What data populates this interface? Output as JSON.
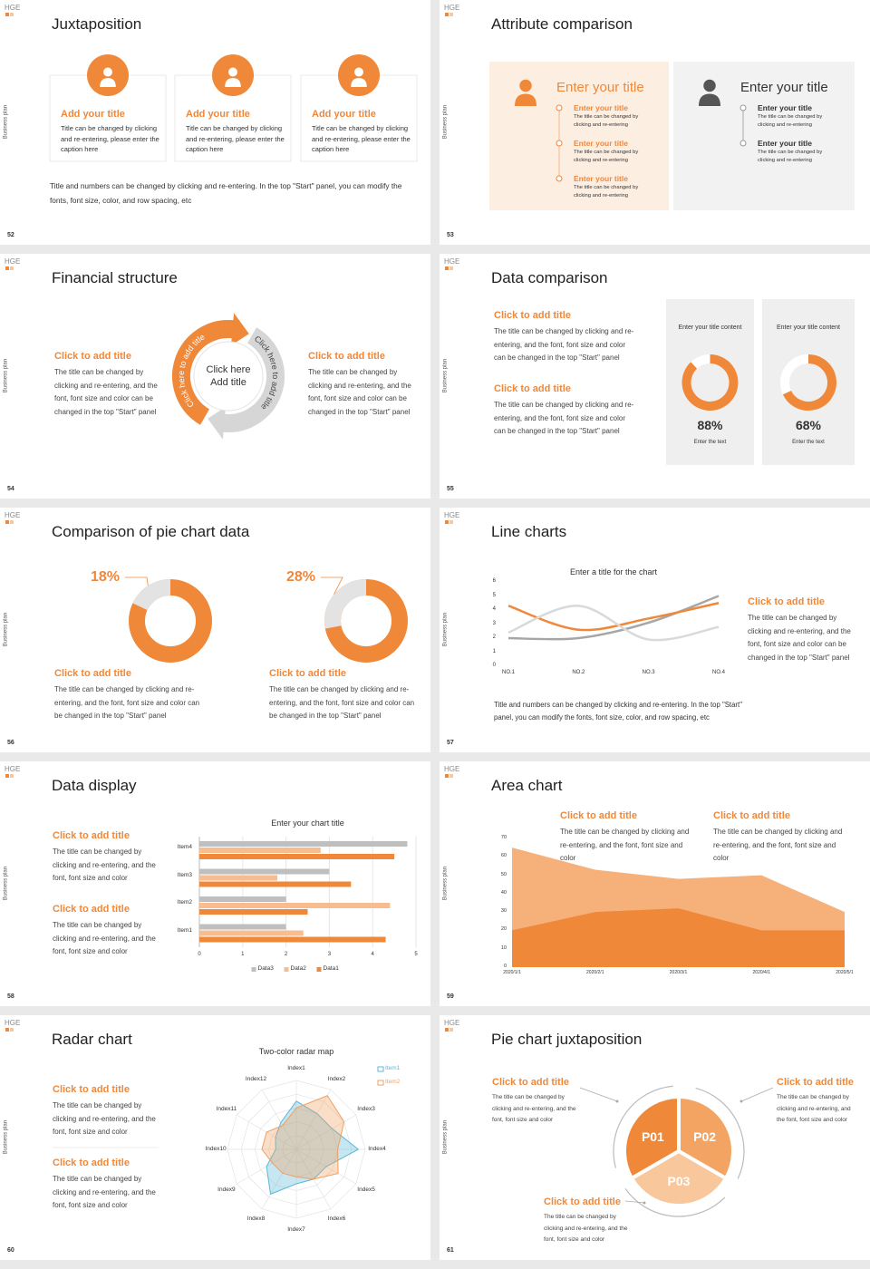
{
  "logo": "HGE",
  "side_label": "Business plan",
  "slides": [
    {
      "title": "Juxtaposition",
      "number": 52,
      "items": [
        {
          "title": "Add your title",
          "text": "Title can be changed by clicking and re-entering, please enter the caption here"
        },
        {
          "title": "Add your title",
          "text": "Title can be changed by clicking and re-entering, please enter the caption here"
        },
        {
          "title": "Add your title",
          "text": "Title can be changed by clicking and re-entering, please enter the caption here"
        }
      ],
      "caption": "Title and numbers can be changed by clicking and re-entering. In the top \"Start\" panel, you can modify the fonts, font size, color, and row spacing, etc"
    },
    {
      "title": "Attribute comparison",
      "number": 53,
      "panels": [
        {
          "title": "Enter your title",
          "items": [
            {
              "title": "Enter your title",
              "text": "The title can be changed by clicking and re-entering"
            },
            {
              "title": "Enter your title",
              "text": "The title can be changed by clicking and re-entering"
            },
            {
              "title": "Enter your title",
              "text": "The title can be changed by clicking and re-entering"
            }
          ]
        },
        {
          "title": "Enter your title",
          "items": [
            {
              "title": "Enter your title",
              "text": "The title can be changed by clicking and re-entering"
            },
            {
              "title": "Enter your title",
              "text": "The title can be changed by clicking and re-entering"
            }
          ]
        }
      ]
    },
    {
      "title": "Financial structure",
      "number": 54,
      "blocks": [
        {
          "title": "Click to add title",
          "text": "The title can be changed by clicking and re-entering, and the font, font size and color can be changed in the top \"Start\" panel"
        },
        {
          "title": "Click to add title",
          "text": "The title can be changed by clicking and re-entering, and the font, font size and color can be changed in the top \"Start\" panel"
        }
      ],
      "cycle": {
        "center": [
          "Click here",
          "Add title"
        ],
        "arrows": [
          "Click here to add title",
          "Click here to add title"
        ]
      }
    },
    {
      "title": "Data comparison",
      "number": 55,
      "blocks": [
        {
          "title": "Click to add title",
          "text": "The title can be changed by clicking and re-entering, and the font, font size and color can be changed in the top \"Start\" panel"
        },
        {
          "title": "Click to add title",
          "text": "The title can be changed by clicking and re-entering, and the font, font size and color can be changed in the top \"Start\" panel"
        }
      ],
      "cards": [
        {
          "label": "Enter your title content",
          "value": 88,
          "value_label": "88%",
          "caption": "Enter the text"
        },
        {
          "label": "Enter your title content",
          "value": 68,
          "value_label": "68%",
          "caption": "Enter the text"
        }
      ]
    },
    {
      "title": "Comparison of pie chart data",
      "number": 56,
      "donuts": [
        {
          "value": 18,
          "value_label": "18%",
          "title": "Click to add title",
          "text": "The title can be changed by clicking and re-entering, and the font, font size and color can be changed in the top \"Start\" panel"
        },
        {
          "value": 28,
          "value_label": "28%",
          "title": "Click to add title",
          "text": "The title can be changed by clicking and re-entering, and the font, font size and color can be changed in the top \"Start\" panel"
        }
      ]
    },
    {
      "title": "Line charts",
      "number": 57,
      "chart": {
        "type": "line",
        "title": "Enter a title for the chart",
        "categories": [
          "NO.1",
          "NO.2",
          "NO.3",
          "NO.4"
        ],
        "series": [
          {
            "color": "#a6a6a6",
            "values": [
              2,
              2,
              3.1,
              5
            ]
          },
          {
            "color": "#f0883a",
            "values": [
              4.3,
              2.6,
              3.4,
              4.5
            ]
          },
          {
            "color": "#d9d9d9",
            "values": [
              2.4,
              4.3,
              1.9,
              2.8
            ]
          }
        ],
        "ylim": [
          0,
          6
        ],
        "yticks": [
          0,
          1,
          2,
          3,
          4,
          5,
          6
        ]
      },
      "block": {
        "title": "Click to add title",
        "text": "The title can be changed by clicking and re-entering, and the font, font size and color can be changed in the top \"Start\" panel"
      },
      "caption": "Title and numbers can be changed by clicking and re-entering. In the top \"Start\" panel, you can modify the fonts, font size, color, and row spacing, etc"
    },
    {
      "title": "Data display",
      "number": 58,
      "blocks": [
        {
          "title": "Click to add title",
          "text": "The title can be changed by clicking and re-entering, and the font, font size and color"
        },
        {
          "title": "Click to add title",
          "text": "The title can be changed by clicking and re-entering, and the font, font size and color"
        }
      ],
      "chart": {
        "type": "barh",
        "title": "Enter your chart title",
        "categories": [
          "Item1",
          "Item2",
          "Item3",
          "Item4"
        ],
        "series": [
          {
            "name": "Data1",
            "color": "#f0883a",
            "values": [
              4.3,
              2.5,
              3.5,
              4.5
            ]
          },
          {
            "name": "Data2",
            "color": "#f8bd8e",
            "values": [
              2.4,
              4.4,
              1.8,
              2.8
            ]
          },
          {
            "name": "Data3",
            "color": "#bfbfbf",
            "values": [
              2,
              2,
              3,
              4.8
            ]
          }
        ],
        "xlim": [
          0,
          5
        ],
        "xticks": [
          0,
          1,
          2,
          3,
          4,
          5
        ]
      }
    },
    {
      "title": "Area chart",
      "number": 59,
      "blocks": [
        {
          "title": "Click to add title",
          "text": "The title can be changed by clicking and re-entering, and the font, font size and color"
        },
        {
          "title": "Click to add title",
          "text": "The title can be changed by clicking and re-entering, and the font, font size and color"
        }
      ],
      "chart": {
        "type": "area",
        "categories": [
          "2020/1/1",
          "2020/2/1",
          "2020/3/1",
          "2020/4/1",
          "2020/5/1"
        ],
        "series": [
          {
            "color": "#f6b07a",
            "values": [
              65,
              53,
              48,
              50,
              30
            ]
          },
          {
            "color": "#f0883a",
            "values": [
              20,
              30,
              32,
              20,
              20
            ]
          }
        ],
        "ylim": [
          0,
          70
        ],
        "yticks": [
          0,
          10,
          20,
          30,
          40,
          50,
          60,
          70
        ]
      }
    },
    {
      "title": "Radar chart",
      "number": 60,
      "blocks": [
        {
          "title": "Click to add title",
          "text": "The title can be changed by clicking and re-entering, and the font, font size and color"
        },
        {
          "title": "Click to add title",
          "text": "The title can be changed by clicking and re-entering, and the font, font size and color"
        }
      ],
      "chart": {
        "type": "radar",
        "title": "Two-color radar map",
        "categories": [
          "Index1",
          "Index2",
          "Index3",
          "Index4",
          "Index5",
          "Index6",
          "Index7",
          "Index8",
          "Index9",
          "Index10",
          "Index11",
          "Index12"
        ],
        "series": [
          {
            "name": "Item1",
            "color": "#5bb8d6",
            "values": [
              7,
              6,
              6,
              9,
              5,
              5,
              5,
              7.5,
              5,
              3,
              3.5,
              4.5
            ]
          },
          {
            "name": "Item2",
            "color": "#f0a060",
            "values": [
              6,
              9,
              8,
              6,
              7,
              5,
              4,
              4,
              4,
              5,
              5,
              4
            ]
          }
        ],
        "rlim": [
          0,
          10
        ]
      }
    },
    {
      "title": "Pie chart juxtaposition",
      "number": 61,
      "blocks": [
        {
          "title": "Click to add title",
          "text": "The title can be changed by clicking and re-entering, and the font, font size and color"
        },
        {
          "title": "Click to add title",
          "text": "The title can be changed by clicking and re-entering, and the font, font size and color"
        },
        {
          "title": "Click to add title",
          "text": "The title can be changed by clicking and re-entering, and the font, font size and color"
        }
      ],
      "sectors": [
        "P01",
        "P02",
        "P03"
      ]
    }
  ]
}
